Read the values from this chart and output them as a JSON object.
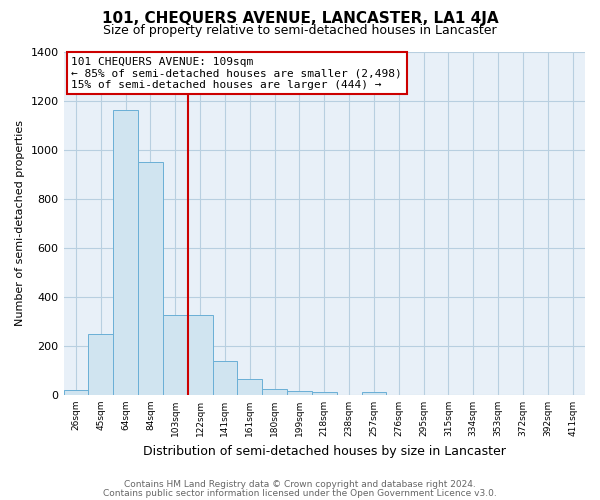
{
  "title": "101, CHEQUERS AVENUE, LANCASTER, LA1 4JA",
  "subtitle": "Size of property relative to semi-detached houses in Lancaster",
  "xlabel": "Distribution of semi-detached houses by size in Lancaster",
  "ylabel": "Number of semi-detached properties",
  "bin_labels": [
    "26sqm",
    "45sqm",
    "64sqm",
    "84sqm",
    "103sqm",
    "122sqm",
    "141sqm",
    "161sqm",
    "180sqm",
    "199sqm",
    "218sqm",
    "238sqm",
    "257sqm",
    "276sqm",
    "295sqm",
    "315sqm",
    "334sqm",
    "353sqm",
    "372sqm",
    "392sqm",
    "411sqm"
  ],
  "bar_values": [
    20,
    250,
    1160,
    950,
    325,
    325,
    140,
    65,
    25,
    15,
    10,
    0,
    10,
    0,
    0,
    0,
    0,
    0,
    0,
    0,
    0
  ],
  "bar_color": "#d0e4f0",
  "bar_edge_color": "#6aafd6",
  "vline_x": 4.5,
  "vline_color": "#cc0000",
  "annotation_title": "101 CHEQUERS AVENUE: 109sqm",
  "annotation_line1": "← 85% of semi-detached houses are smaller (2,498)",
  "annotation_line2": "15% of semi-detached houses are larger (444) →",
  "annotation_box_color": "#ffffff",
  "annotation_box_edge": "#cc0000",
  "ylim": [
    0,
    1400
  ],
  "yticks": [
    0,
    200,
    400,
    600,
    800,
    1000,
    1200,
    1400
  ],
  "footer1": "Contains HM Land Registry data © Crown copyright and database right 2024.",
  "footer2": "Contains public sector information licensed under the Open Government Licence v3.0.",
  "bg_color": "#ffffff",
  "plot_bg_color": "#e8f0f8",
  "grid_color": "#b8cfe0",
  "title_fontsize": 11,
  "subtitle_fontsize": 9,
  "ylabel_fontsize": 8,
  "xlabel_fontsize": 9
}
